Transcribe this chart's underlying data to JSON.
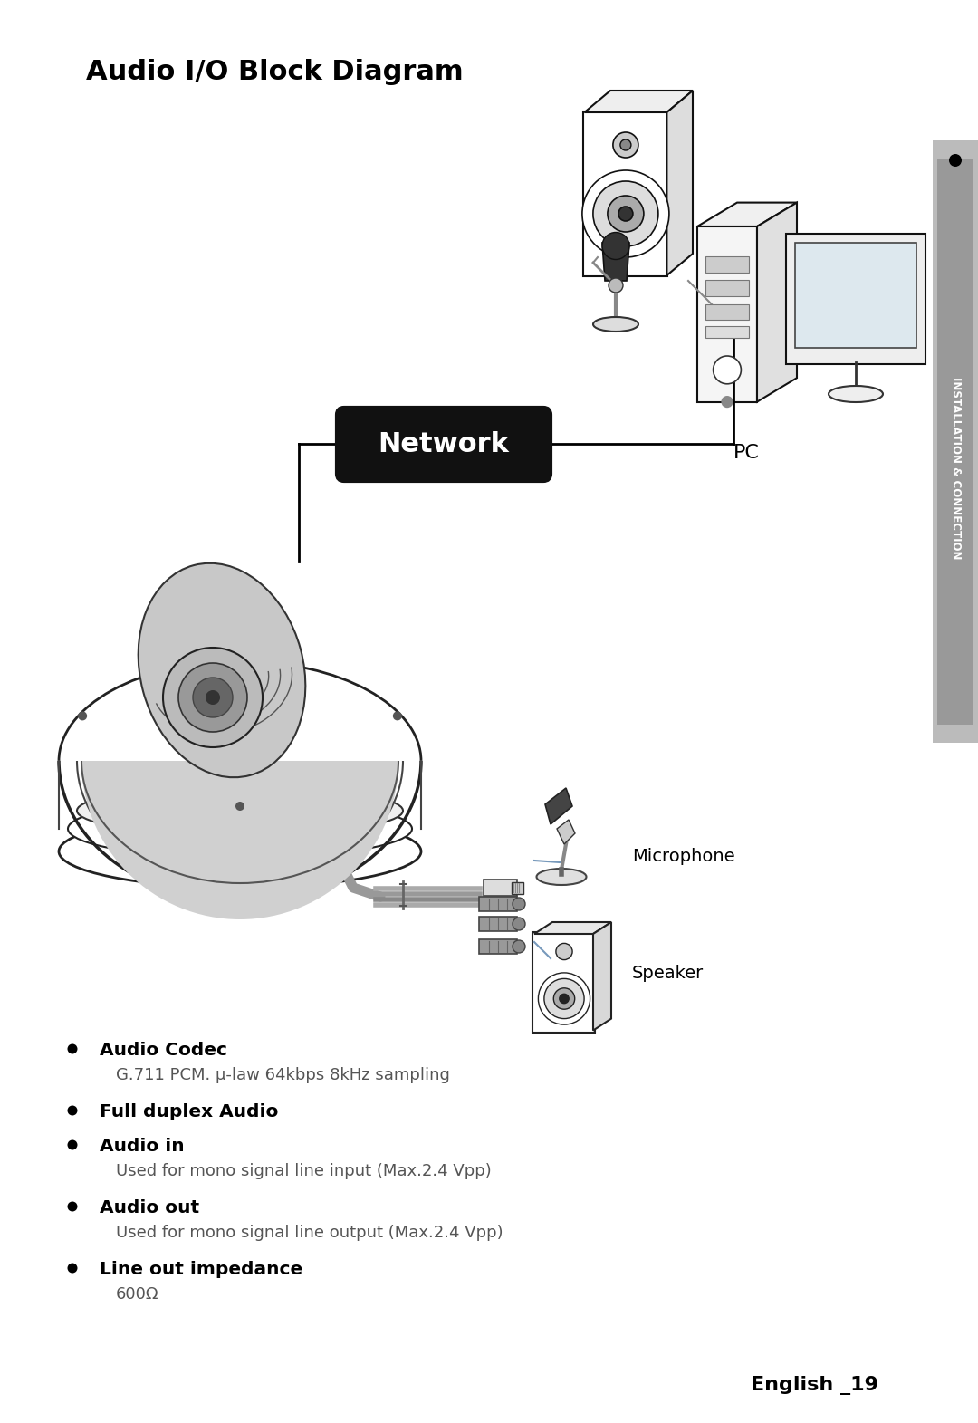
{
  "title": "Audio I/O Block Diagram",
  "network_label": "Network",
  "pc_label": "PC",
  "microphone_label": "Microphone",
  "speaker_label": "Speaker",
  "bullet_items": [
    {
      "bold": "Audio Codec",
      "normal": "G.711 PCM. μ-law 64kbps 8kHz sampling"
    },
    {
      "bold": "Full duplex Audio",
      "normal": ""
    },
    {
      "bold": "Audio in",
      "normal": "Used for mono signal line input (Max.2.4 Vpp)"
    },
    {
      "bold": "Audio out",
      "normal": "Used for mono signal line output (Max.2.4 Vpp)"
    },
    {
      "bold": "Line out impedance",
      "normal": "600Ω"
    }
  ],
  "page_label": "English _19",
  "sidebar_text": "INSTALLATION & CONNECTION",
  "bg_color": "#ffffff",
  "text_color": "#000000",
  "sidebar_color": "#bbbbbb",
  "line_color": "#000000",
  "net_line_color": "#888888",
  "audio_line_color": "#7799bb"
}
